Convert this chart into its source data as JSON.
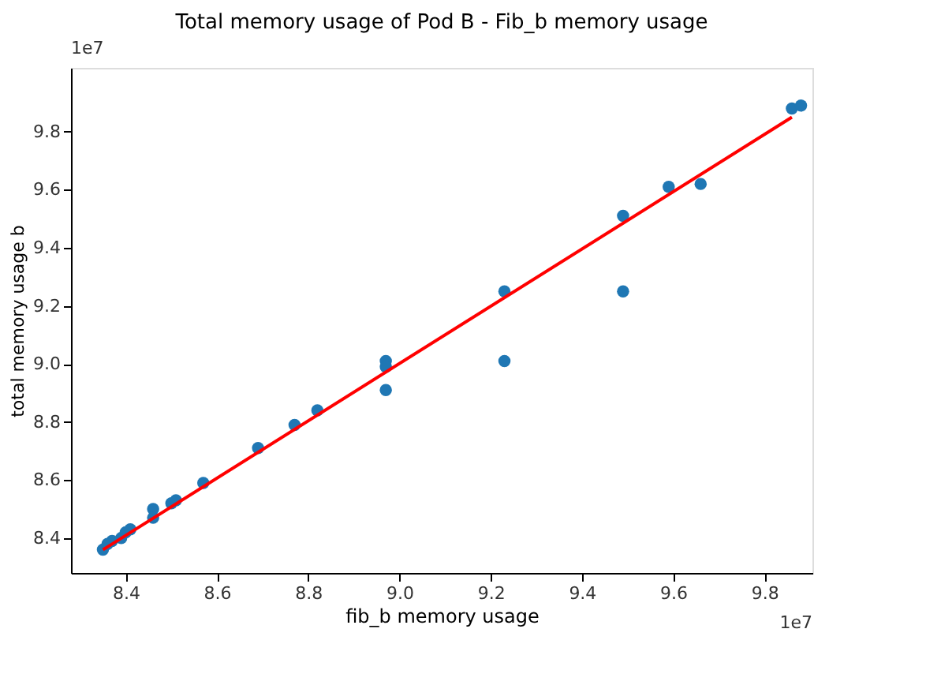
{
  "chart_data": {
    "type": "scatter",
    "title": "Total memory usage of Pod B  - Fib_b memory usage",
    "xlabel": "fib_b memory usage",
    "ylabel": "total memory usage b",
    "annotations": [
      "1e7",
      "1e7"
    ],
    "xlim": [
      8.28,
      9.905
    ],
    "ylim": [
      8.28,
      10.02
    ],
    "xticks": [
      8.4,
      8.6,
      8.8,
      {
        "value": 9,
        "label": "9.0"
      },
      9.2,
      9.4,
      9.6,
      9.8
    ],
    "yticks": [
      8.4,
      8.6,
      8.8,
      {
        "value": 9,
        "label": "9.0"
      },
      9.2,
      9.4,
      9.6,
      9.8
    ],
    "grid": false,
    "series": [
      {
        "color": "#1f77b4",
        "marker": "circle",
        "x": [
          8.35,
          8.36,
          8.37,
          8.39,
          8.4,
          8.41,
          8.46,
          8.46,
          8.5,
          8.51,
          8.57,
          8.69,
          8.77,
          8.82,
          8.97,
          8.97,
          8.97,
          9.23,
          9.23,
          9.49,
          9.49,
          9.59,
          9.66,
          9.86,
          9.88
        ],
        "values": [
          8.36,
          8.38,
          8.39,
          8.4,
          8.42,
          8.43,
          8.5,
          8.47,
          8.52,
          8.53,
          8.59,
          8.71,
          8.79,
          8.84,
          9.01,
          8.99,
          8.91,
          9.25,
          9.01,
          9.51,
          9.25,
          9.61,
          9.62,
          9.88,
          9.89
        ]
      },
      {
        "type": "line",
        "color": "#ff0000",
        "x": [
          8.35,
          9.86
        ],
        "values": [
          8.36,
          9.85
        ],
        "line_style": "solid",
        "marker": "none"
      }
    ]
  }
}
